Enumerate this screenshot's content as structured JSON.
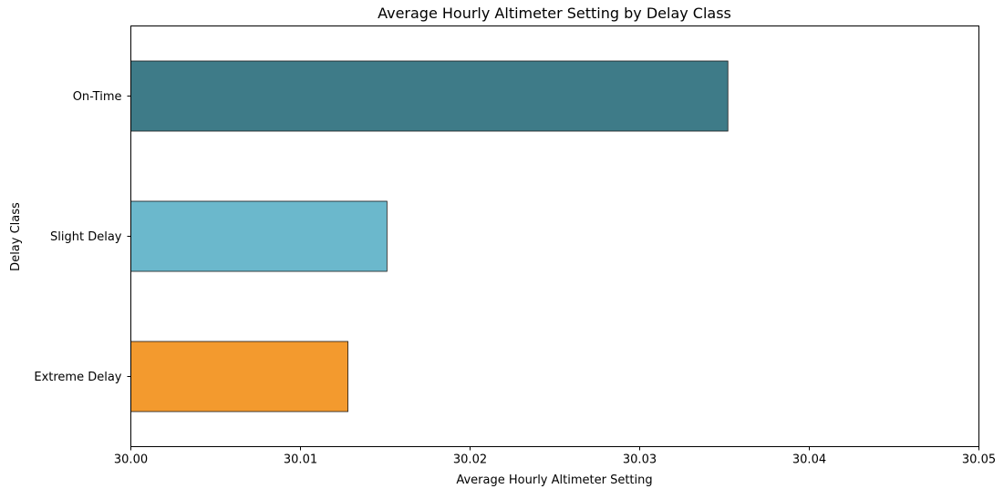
{
  "chart_data": {
    "type": "bar",
    "orientation": "horizontal",
    "title": "Average Hourly Altimeter Setting by Delay Class",
    "xlabel": "Average Hourly Altimeter Setting",
    "ylabel": "Delay Class",
    "categories": [
      "On-Time",
      "Slight Delay",
      "Extreme Delay"
    ],
    "values": [
      30.0352,
      30.0151,
      30.0128
    ],
    "colors": [
      "#3e7b88",
      "#6bb8cc",
      "#f39a2e"
    ],
    "xlim": [
      30.0,
      30.05
    ],
    "xticks": [
      "30.00",
      "30.01",
      "30.02",
      "30.03",
      "30.04",
      "30.05"
    ],
    "grid": false,
    "legend": "none"
  }
}
